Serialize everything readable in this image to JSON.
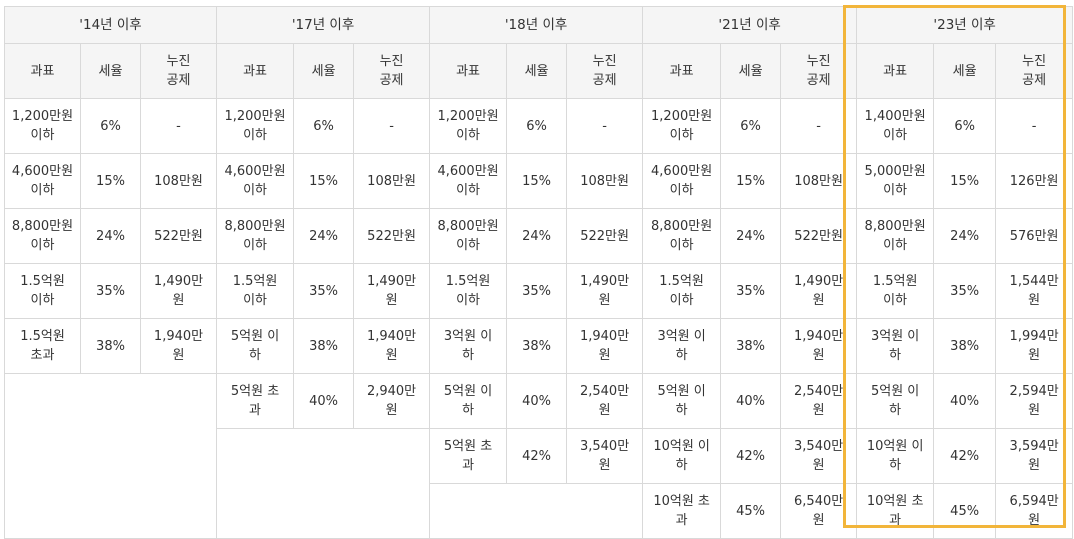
{
  "periods": [
    "'14년 이후",
    "'17년 이후",
    "'18년 이후",
    "'21년 이후",
    "'23년 이후"
  ],
  "subheaders": [
    "과표",
    "세율",
    "누진\n공제"
  ],
  "highlight_color": "#f2b53a",
  "header_bg": "#f5f5f5",
  "columns": [
    [
      [
        "1,200만원\n이하",
        "6%",
        "-"
      ],
      [
        "4,600만원\n이하",
        "15%",
        "108만원"
      ],
      [
        "8,800만원\n이하",
        "24%",
        "522만원"
      ],
      [
        "1.5억원\n이하",
        "35%",
        "1,490만\n원"
      ],
      [
        "1.5억원\n초과",
        "38%",
        "1,940만\n원"
      ]
    ],
    [
      [
        "1,200만원\n이하",
        "6%",
        "-"
      ],
      [
        "4,600만원\n이하",
        "15%",
        "108만원"
      ],
      [
        "8,800만원\n이하",
        "24%",
        "522만원"
      ],
      [
        "1.5억원\n이하",
        "35%",
        "1,490만\n원"
      ],
      [
        "5억원 이\n하",
        "38%",
        "1,940만\n원"
      ],
      [
        "5억원 초\n과",
        "40%",
        "2,940만\n원"
      ]
    ],
    [
      [
        "1,200만원\n이하",
        "6%",
        "-"
      ],
      [
        "4,600만원\n이하",
        "15%",
        "108만원"
      ],
      [
        "8,800만원\n이하",
        "24%",
        "522만원"
      ],
      [
        "1.5억원\n이하",
        "35%",
        "1,490만\n원"
      ],
      [
        "3억원 이\n하",
        "38%",
        "1,940만\n원"
      ],
      [
        "5억원 이\n하",
        "40%",
        "2,540만\n원"
      ],
      [
        "5억원 초\n과",
        "42%",
        "3,540만\n원"
      ]
    ],
    [
      [
        "1,200만원\n이하",
        "6%",
        "-"
      ],
      [
        "4,600만원\n이하",
        "15%",
        "108만원"
      ],
      [
        "8,800만원\n이하",
        "24%",
        "522만원"
      ],
      [
        "1.5억원\n이하",
        "35%",
        "1,490만\n원"
      ],
      [
        "3억원 이\n하",
        "38%",
        "1,940만\n원"
      ],
      [
        "5억원 이\n하",
        "40%",
        "2,540만\n원"
      ],
      [
        "10억원 이\n하",
        "42%",
        "3,540만\n원"
      ],
      [
        "10억원 초\n과",
        "45%",
        "6,540만\n원"
      ]
    ],
    [
      [
        "1,400만원\n이하",
        "6%",
        "-"
      ],
      [
        "5,000만원\n이하",
        "15%",
        "126만원"
      ],
      [
        "8,800만원\n이하",
        "24%",
        "576만원"
      ],
      [
        "1.5억원\n이하",
        "35%",
        "1,544만\n원"
      ],
      [
        "3억원 이\n하",
        "38%",
        "1,994만\n원"
      ],
      [
        "5억원 이\n하",
        "40%",
        "2,594만\n원"
      ],
      [
        "10억원 이\n하",
        "42%",
        "3,594만\n원"
      ],
      [
        "10억원 초\n과",
        "45%",
        "6,594만\n원"
      ]
    ]
  ]
}
